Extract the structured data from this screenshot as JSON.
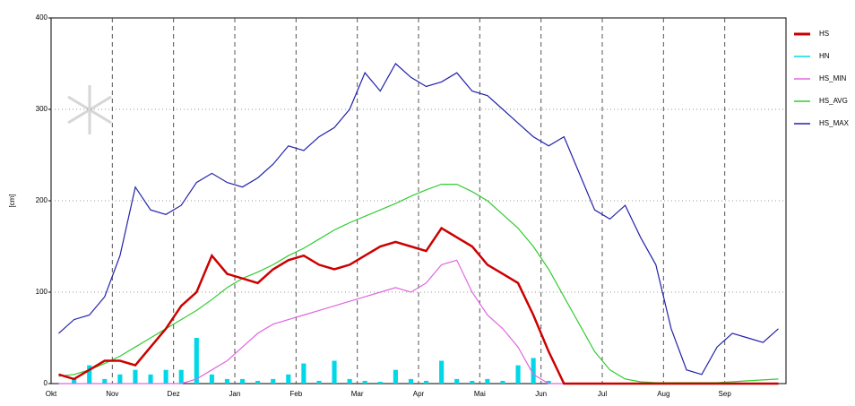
{
  "chart_data": {
    "type": "line",
    "y_label": "[cm]",
    "ylim": [
      0,
      400
    ],
    "yticks": [
      0,
      100,
      200,
      300,
      400
    ],
    "grid": true,
    "legend": "right",
    "categories": [
      "Okt",
      null,
      null,
      null,
      "Nov",
      null,
      null,
      null,
      "Dez",
      null,
      null,
      null,
      "Jan",
      null,
      null,
      null,
      "Feb",
      null,
      null,
      null,
      "Mar",
      null,
      null,
      null,
      "Apr",
      null,
      null,
      null,
      "Mai",
      null,
      null,
      null,
      "Jun",
      null,
      null,
      null,
      "Jul",
      null,
      null,
      null,
      "Aug",
      null,
      null,
      null,
      "Sep",
      null,
      null,
      null
    ],
    "series": [
      {
        "name": "HS",
        "type": "line",
        "color": "#cc0000",
        "width": 2.5,
        "values": [
          10,
          5,
          15,
          25,
          25,
          20,
          40,
          60,
          85,
          100,
          140,
          120,
          115,
          110,
          125,
          135,
          140,
          130,
          125,
          130,
          140,
          150,
          155,
          150,
          145,
          170,
          160,
          150,
          130,
          120,
          110,
          75,
          35,
          0,
          0,
          0,
          0,
          0,
          0,
          0,
          0,
          0,
          0,
          0,
          0,
          0,
          0,
          0
        ]
      },
      {
        "name": "HN",
        "type": "bar",
        "color": "#00d8e8",
        "values": [
          0,
          5,
          20,
          5,
          10,
          15,
          10,
          15,
          15,
          50,
          10,
          5,
          5,
          3,
          5,
          10,
          22,
          3,
          25,
          5,
          3,
          2,
          15,
          5,
          3,
          25,
          5,
          3,
          5,
          3,
          20,
          28,
          3,
          0,
          0,
          0,
          0,
          0,
          0,
          0,
          0,
          0,
          0,
          0,
          0,
          0,
          0,
          0
        ]
      },
      {
        "name": "HS_MIN",
        "type": "line",
        "color": "#e066e0",
        "width": 1.2,
        "values": [
          0,
          0,
          0,
          0,
          0,
          0,
          0,
          0,
          0,
          5,
          15,
          25,
          40,
          55,
          65,
          70,
          75,
          80,
          85,
          90,
          95,
          100,
          105,
          100,
          110,
          130,
          135,
          100,
          75,
          60,
          40,
          10,
          0,
          0,
          0,
          0,
          0,
          0,
          0,
          0,
          0,
          0,
          0,
          0,
          0,
          0,
          0,
          0
        ]
      },
      {
        "name": "HS_AVG",
        "type": "line",
        "color": "#33cc33",
        "width": 1.2,
        "values": [
          8,
          10,
          15,
          22,
          30,
          40,
          50,
          60,
          70,
          80,
          92,
          105,
          115,
          122,
          130,
          140,
          148,
          158,
          168,
          176,
          183,
          190,
          197,
          205,
          212,
          218,
          218,
          210,
          200,
          185,
          170,
          150,
          125,
          95,
          65,
          35,
          15,
          5,
          2,
          1,
          1,
          1,
          1,
          1,
          2,
          3,
          4,
          5
        ]
      },
      {
        "name": "HS_MAX",
        "type": "line",
        "color": "#2222aa",
        "width": 1.2,
        "values": [
          55,
          70,
          75,
          95,
          140,
          215,
          190,
          185,
          195,
          220,
          230,
          220,
          215,
          225,
          240,
          260,
          255,
          270,
          280,
          300,
          340,
          320,
          350,
          335,
          325,
          330,
          340,
          320,
          315,
          300,
          285,
          270,
          260,
          270,
          230,
          190,
          180,
          195,
          160,
          130,
          60,
          15,
          10,
          40,
          55,
          50,
          45,
          60
        ]
      }
    ]
  }
}
